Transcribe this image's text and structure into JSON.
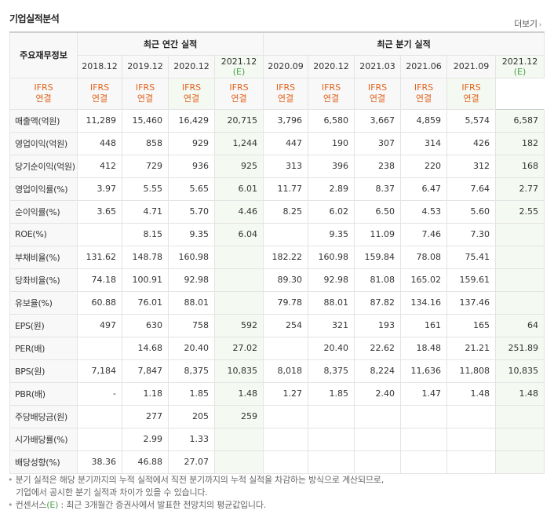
{
  "section_title": "기업실적분석",
  "more_link": "더보기",
  "corner_label": "주요재무정보",
  "groups": {
    "annual": "최근 연간 실적",
    "quarter": "최근 분기 실적"
  },
  "periods": [
    {
      "label": "2018.12",
      "est": ""
    },
    {
      "label": "2019.12",
      "est": ""
    },
    {
      "label": "2020.12",
      "est": ""
    },
    {
      "label": "2021.12",
      "est": "(E)"
    },
    {
      "label": "2020.09",
      "est": ""
    },
    {
      "label": "2020.12",
      "est": ""
    },
    {
      "label": "2021.03",
      "est": ""
    },
    {
      "label": "2021.06",
      "est": ""
    },
    {
      "label": "2021.09",
      "est": ""
    },
    {
      "label": "2021.12",
      "est": "(E)"
    }
  ],
  "basis": {
    "line1": "IFRS",
    "line2": "연결"
  },
  "rows": [
    {
      "label": "매출액(억원)",
      "values": [
        "11,289",
        "15,460",
        "16,429",
        "20,715",
        "3,796",
        "6,580",
        "3,667",
        "4,859",
        "5,574",
        "6,587"
      ]
    },
    {
      "label": "영업이익(억원)",
      "values": [
        "448",
        "858",
        "929",
        "1,244",
        "447",
        "190",
        "307",
        "314",
        "426",
        "182"
      ]
    },
    {
      "label": "당기순이익(억원)",
      "values": [
        "412",
        "729",
        "936",
        "925",
        "313",
        "396",
        "238",
        "220",
        "312",
        "168"
      ]
    },
    {
      "label": "영업이익률(%)",
      "values": [
        "3.97",
        "5.55",
        "5.65",
        "6.01",
        "11.77",
        "2.89",
        "8.37",
        "6.47",
        "7.64",
        "2.77"
      ]
    },
    {
      "label": "순이익률(%)",
      "values": [
        "3.65",
        "4.71",
        "5.70",
        "4.46",
        "8.25",
        "6.02",
        "6.50",
        "4.53",
        "5.60",
        "2.55"
      ]
    },
    {
      "label": "ROE(%)",
      "values": [
        "",
        "8.15",
        "9.35",
        "6.04",
        "",
        "9.35",
        "11.09",
        "7.46",
        "7.30",
        ""
      ]
    },
    {
      "label": "부채비율(%)",
      "values": [
        "131.62",
        "148.78",
        "160.98",
        "",
        "182.22",
        "160.98",
        "159.84",
        "78.08",
        "75.41",
        ""
      ]
    },
    {
      "label": "당좌비율(%)",
      "values": [
        "74.18",
        "100.91",
        "92.98",
        "",
        "89.30",
        "92.98",
        "81.08",
        "165.02",
        "159.61",
        ""
      ]
    },
    {
      "label": "유보율(%)",
      "values": [
        "60.88",
        "76.01",
        "88.01",
        "",
        "79.78",
        "88.01",
        "87.82",
        "134.16",
        "137.46",
        ""
      ]
    },
    {
      "label": "EPS(원)",
      "values": [
        "497",
        "630",
        "758",
        "592",
        "254",
        "321",
        "193",
        "161",
        "165",
        "64"
      ]
    },
    {
      "label": "PER(배)",
      "values": [
        "",
        "14.68",
        "20.40",
        "27.02",
        "",
        "20.40",
        "22.62",
        "18.48",
        "21.21",
        "251.89"
      ]
    },
    {
      "label": "BPS(원)",
      "values": [
        "7,184",
        "7,847",
        "8,375",
        "10,835",
        "8,018",
        "8,375",
        "8,224",
        "11,636",
        "11,808",
        "10,835"
      ]
    },
    {
      "label": "PBR(배)",
      "values": [
        "-",
        "1.18",
        "1.85",
        "1.48",
        "1.27",
        "1.85",
        "2.40",
        "1.47",
        "1.48",
        "1.48"
      ]
    },
    {
      "label": "주당배당금(원)",
      "values": [
        "",
        "277",
        "205",
        "259",
        "",
        "",
        "",
        "",
        "",
        ""
      ]
    },
    {
      "label": "시가배당률(%)",
      "values": [
        "",
        "2.99",
        "1.33",
        "",
        "",
        "",
        "",
        "",
        "",
        ""
      ]
    },
    {
      "label": "배당성향(%)",
      "values": [
        "38.36",
        "46.88",
        "27.07",
        "",
        "",
        "",
        "",
        "",
        "",
        ""
      ]
    }
  ],
  "notes": {
    "line1": "분기 실적은 해당 분기까지의 누적 실적에서 직전 분기까지의 누적 실적을 차감하는 방식으로 계산되므로,",
    "line2": "기업에서 공시한 분기 실적과 차이가 있을 수 있습니다.",
    "line3_prefix": "컨센서스",
    "line3_mark": "(E)",
    "line3_rest": " : 최근 3개월간 증권사에서 발표한 전망치의 평균값입니다."
  },
  "colors": {
    "basis_orange": "#e2641f",
    "estimate_green": "#4aa04a",
    "estimate_bg": "#f4f9f1",
    "header_bg": "#f8f8f8"
  }
}
